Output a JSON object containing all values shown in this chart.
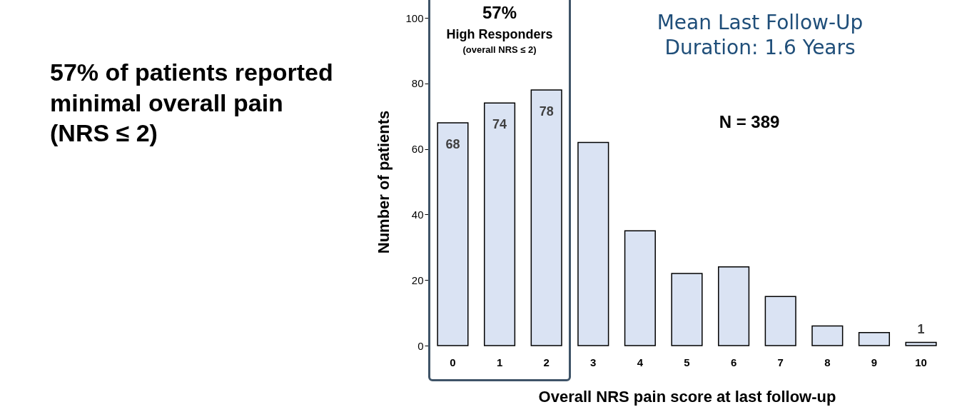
{
  "chart_data": {
    "type": "bar",
    "xlabel": "Overall NRS pain score at last follow-up",
    "ylabel": "Number of patients",
    "categories": [
      "0",
      "1",
      "2",
      "3",
      "4",
      "5",
      "6",
      "7",
      "8",
      "9",
      "10"
    ],
    "values": [
      68,
      74,
      78,
      62,
      35,
      22,
      24,
      15,
      6,
      4,
      1
    ],
    "value_labels": [
      "68",
      "74",
      "78",
      null,
      null,
      null,
      null,
      null,
      null,
      null,
      "1"
    ],
    "color": "#dae3f3",
    "ylim": [
      0,
      100
    ],
    "yticks": [
      0,
      20,
      40,
      60,
      80,
      100
    ],
    "annotations": [
      "57% of patients reported minimal overall pain (NRS ≤ 2)",
      "57%",
      "High Responders",
      "(overall NRS ≤ 2)",
      "Mean Last Follow-Up Duration: 1.6 Years",
      "N = 389"
    ]
  }
}
